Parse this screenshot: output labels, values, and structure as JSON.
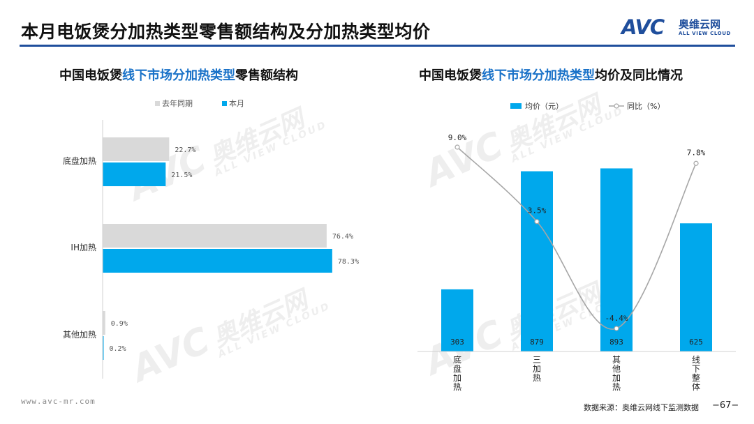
{
  "header": {
    "title": "本月电饭煲分加热类型零售额结构及分加热类型均价",
    "logo": {
      "mark": "AVC",
      "name_cn": "奥维云网",
      "name_en": "ALL VIEW CLOUD"
    }
  },
  "left_chart": {
    "title_prefix": "中国电饭煲",
    "title_highlight": "线下市场分加热类型",
    "title_suffix": "零售额结构"
  },
  "right_chart": {
    "title_prefix": "中国电饭煲",
    "title_highlight": "线下市场分加热类型",
    "title_suffix": "均价及同比情况"
  },
  "watermark": {
    "mark": "AVC",
    "name_cn": "奥维云网",
    "name_en": "ALL VIEW CLOUD"
  },
  "footer": {
    "url": "www.avc-mr.com",
    "source": "数据来源：奥维云网线下监测数据",
    "page": "−67−"
  },
  "colors": {
    "current": "#00a8ec",
    "last_year": "#d9d9d9",
    "line": "#a6a6a6",
    "accent": "#1f4e9c"
  },
  "chart_data": [
    {
      "type": "bar",
      "orientation": "horizontal",
      "categories": [
        "底盘加热",
        "IH加热",
        "其他加热"
      ],
      "series": [
        {
          "name": "去年同期",
          "values": [
            22.7,
            76.4,
            0.9
          ],
          "labels": [
            "22.7%",
            "76.4%",
            "0.9%"
          ]
        },
        {
          "name": "本月",
          "values": [
            21.5,
            78.3,
            0.2
          ],
          "labels": [
            "21.5%",
            "78.3%",
            "0.2%"
          ]
        }
      ],
      "xlim": [
        0,
        100
      ],
      "legend": "top",
      "grid": false
    },
    {
      "type": "bar",
      "categories": [
        "底盘加热",
        "三加热",
        "其他加热",
        "线下整体"
      ],
      "series": [
        {
          "name": "均价（元）",
          "type": "bar",
          "values": [
            303,
            879,
            893,
            625
          ],
          "labels": [
            "303",
            "879",
            "893",
            "625"
          ]
        },
        {
          "name": "同比（%）",
          "type": "line",
          "values": [
            9.0,
            3.5,
            -4.4,
            7.8
          ],
          "labels": [
            "9.0%",
            "3.5%",
            "-4.4%",
            "7.8%"
          ]
        }
      ],
      "ylim": [
        0,
        1000
      ],
      "y2lim": [
        -5,
        13
      ],
      "legend": "top",
      "grid": false
    }
  ]
}
